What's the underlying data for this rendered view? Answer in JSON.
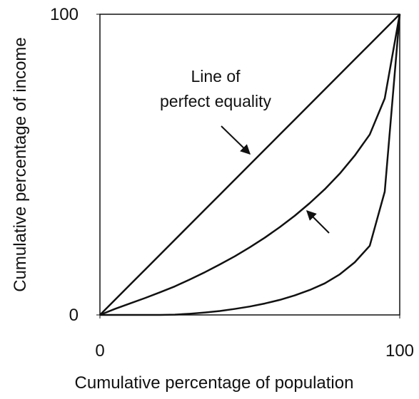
{
  "chart_data": {
    "type": "line",
    "xlabel": "Cumulative percentage of population",
    "ylabel": "Cumulative percentage of income",
    "annotation": [
      "Line of",
      "perfect equality"
    ],
    "x": [
      0,
      5,
      10,
      15,
      20,
      25,
      30,
      35,
      40,
      45,
      50,
      55,
      60,
      65,
      70,
      75,
      80,
      85,
      90,
      95,
      100
    ],
    "series": [
      {
        "color": "#111111",
        "values": [
          0,
          5,
          10,
          15,
          20,
          25,
          30,
          35,
          40,
          45,
          50,
          55,
          60,
          65,
          70,
          75,
          80,
          85,
          90,
          95,
          100
        ]
      },
      {
        "color": "#111111",
        "values": [
          0,
          2,
          3.8,
          5.6,
          7.5,
          9.5,
          11.8,
          14.2,
          16.8,
          19.5,
          22.5,
          25.7,
          29.2,
          33,
          37.2,
          41.8,
          47,
          53,
          60,
          72,
          100
        ]
      },
      {
        "color": "#111111",
        "values": [
          0,
          0,
          0,
          0,
          0,
          0.1,
          0.4,
          0.8,
          1.3,
          2,
          2.8,
          3.8,
          5,
          6.5,
          8.3,
          10.5,
          13.5,
          17.5,
          23,
          41,
          100
        ]
      }
    ],
    "xlim": [
      0,
      100
    ],
    "ylim": [
      0,
      100
    ],
    "xticks": [
      0,
      100
    ],
    "yticks": [
      0,
      100
    ]
  }
}
